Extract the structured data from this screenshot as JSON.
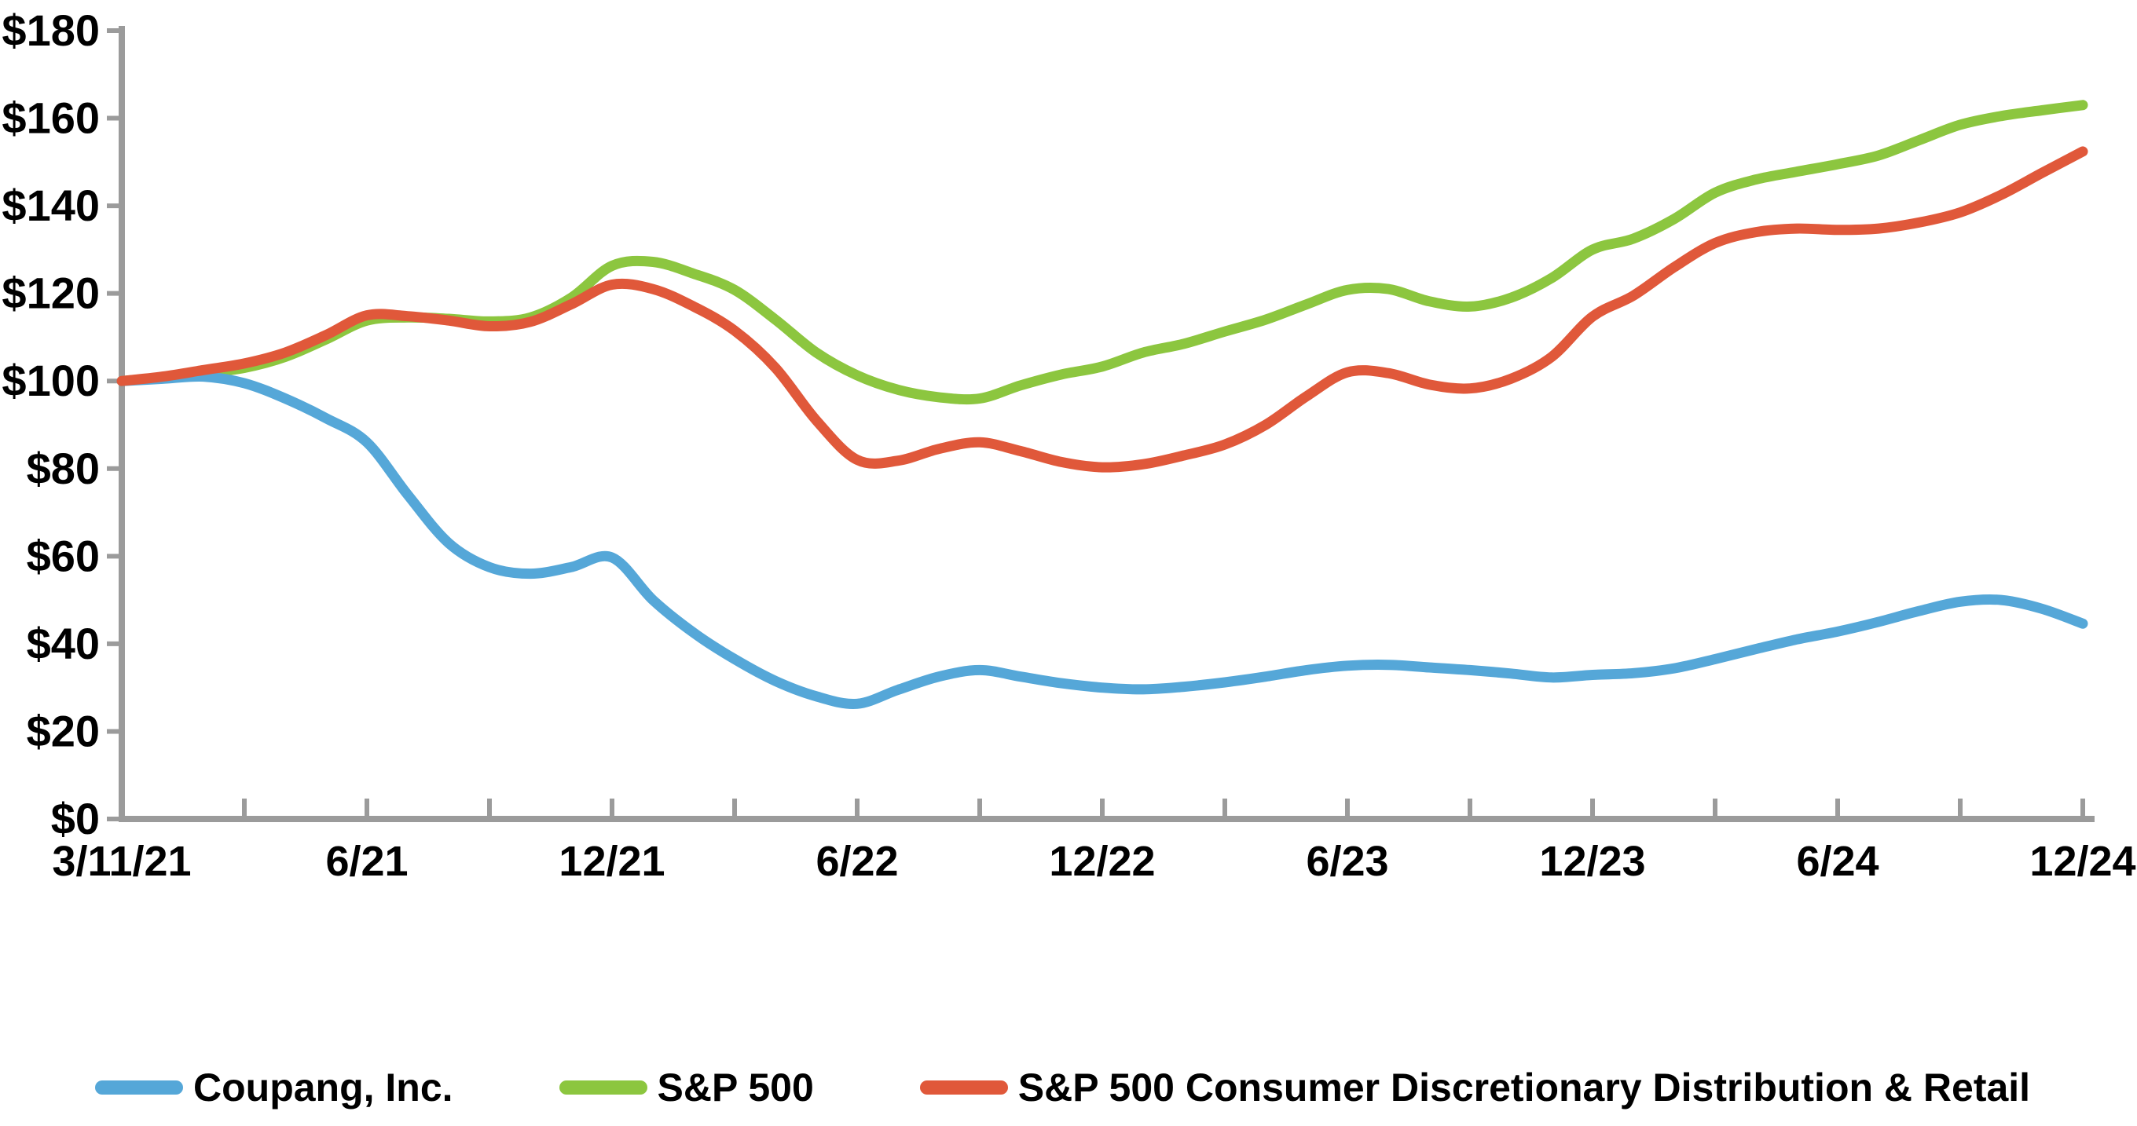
{
  "chart_data": {
    "type": "line",
    "title": "",
    "xlabel": "",
    "ylabel": "",
    "ylim": [
      0,
      180
    ],
    "grid": false,
    "legend_position": "bottom",
    "axis_color": "#9B9B9B",
    "text_color": "#000000",
    "y_tick_values": [
      0,
      20,
      40,
      60,
      80,
      100,
      120,
      140,
      160,
      180
    ],
    "y_tick_labels": [
      "$0",
      "$20",
      "$40",
      "$60",
      "$80",
      "$100",
      "$120",
      "$140",
      "$160",
      "$180"
    ],
    "x_tick_labels": [
      "3/11/21",
      "",
      "6/21",
      "",
      "12/21",
      "",
      "6/22",
      "",
      "12/22",
      "",
      "6/23",
      "",
      "12/23",
      "",
      "6/24",
      "",
      "12/24"
    ],
    "x_start_label": "3/11/21",
    "x_end_label": "12/24",
    "series": [
      {
        "name": "Coupang, Inc.",
        "color": "#55A7D8",
        "values": [
          100,
          100.5,
          101,
          99.5,
          96,
          91.5,
          86,
          74,
          63,
          57.5,
          56,
          57.5,
          59.7,
          50,
          42.5,
          36.5,
          31.5,
          28,
          26.3,
          29.5,
          32.5,
          34,
          32.5,
          31,
          30,
          29.6,
          30.2,
          31.2,
          32.5,
          34,
          35,
          35.2,
          34.6,
          34,
          33.2,
          32.3,
          32.9,
          33.3,
          34.4,
          36.5,
          38.8,
          41,
          42.8,
          45,
          47.5,
          49.6,
          50,
          48,
          44.6
        ]
      },
      {
        "name": "S&P 500",
        "color": "#8CC63F",
        "values": [
          100,
          100.8,
          101.8,
          103,
          105.5,
          109.5,
          113.8,
          114.5,
          114.2,
          113.6,
          114.5,
          119,
          126.3,
          127.2,
          124.5,
          120.8,
          114,
          106.5,
          101.3,
          98,
          96.3,
          96,
          99,
          101.5,
          103.3,
          106.5,
          108.5,
          111.3,
          114,
          117.5,
          120.8,
          121,
          118.2,
          117,
          119,
          123.5,
          130,
          132.5,
          137,
          143,
          146,
          147.8,
          149.5,
          151.5,
          155,
          158.5,
          160.5,
          161.8,
          163
        ]
      },
      {
        "name": "S&P 500 Consumer Discretionary Distribution & Retail",
        "color": "#E0583A",
        "values": [
          100,
          101,
          102.5,
          104,
          106.5,
          110.5,
          115,
          114.8,
          113.8,
          112.5,
          113.5,
          117.5,
          122,
          121,
          117,
          111.5,
          103,
          91,
          82,
          81.8,
          84.5,
          86,
          84,
          81.5,
          80.3,
          81,
          83,
          85.5,
          90,
          96.5,
          102,
          101.8,
          99.2,
          98.3,
          100.5,
          105.5,
          114.7,
          119.5,
          126,
          131.5,
          134,
          134.8,
          134.5,
          134.8,
          136.2,
          138.5,
          142.5,
          147.5,
          152.4
        ]
      }
    ]
  }
}
